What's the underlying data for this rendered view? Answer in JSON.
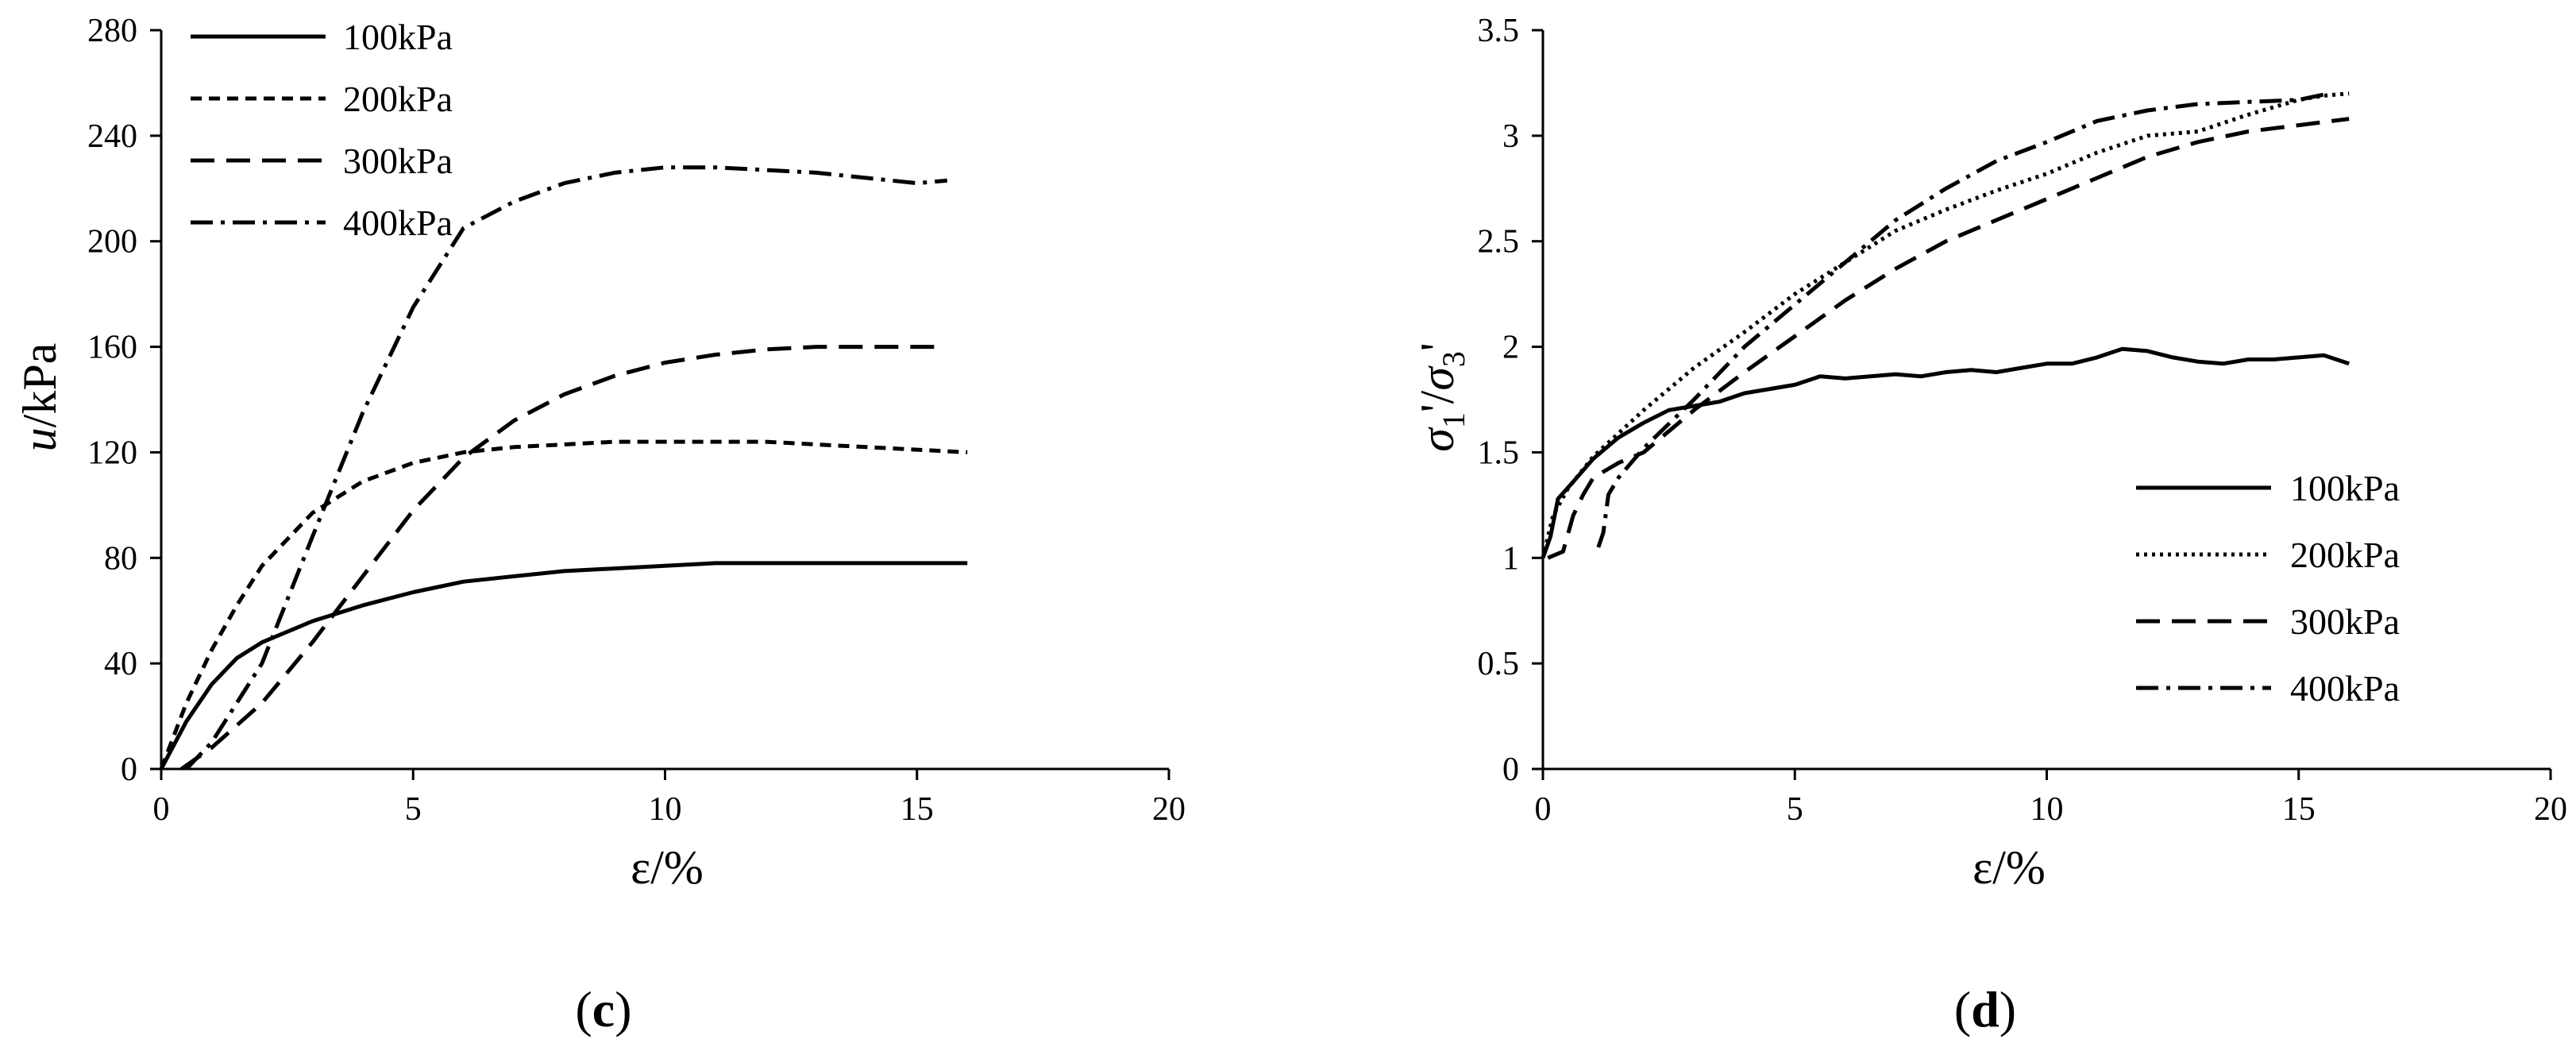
{
  "chart_data": [
    {
      "type": "line",
      "panel_label": {
        "open": "(",
        "letter": "c",
        "close": ")"
      },
      "title": "",
      "xlabel": "ε/%",
      "ylabel": {
        "italic": "u",
        "rest": "/kPa"
      },
      "xlim": [
        0,
        20
      ],
      "ylim": [
        0,
        280
      ],
      "xticks": [
        "0",
        "5",
        "10",
        "15",
        "20"
      ],
      "yticks": [
        "0",
        "40",
        "80",
        "120",
        "160",
        "200",
        "240",
        "280"
      ],
      "grid": false,
      "legend": "top-left",
      "series": [
        {
          "name": "100kPa",
          "dash": "solid",
          "x": [
            0,
            0.5,
            1,
            1.5,
            2,
            3,
            4,
            5,
            6,
            7,
            8,
            9,
            10,
            11,
            12,
            13,
            14,
            15,
            16
          ],
          "y": [
            0,
            18,
            32,
            42,
            48,
            56,
            62,
            67,
            71,
            73,
            75,
            76,
            77,
            78,
            78,
            78,
            78,
            78,
            78
          ]
        },
        {
          "name": "200kPa",
          "dash": "short",
          "x": [
            0,
            0.5,
            1,
            1.5,
            2,
            3,
            4,
            5,
            6,
            7,
            8,
            9,
            10,
            11,
            12,
            13,
            14,
            15,
            16
          ],
          "y": [
            0,
            25,
            45,
            62,
            77,
            97,
            109,
            116,
            120,
            122,
            123,
            124,
            124,
            124,
            124,
            123,
            122,
            121,
            120
          ]
        },
        {
          "name": "300kPa",
          "dash": "long",
          "x": [
            0.4,
            1,
            2,
            3,
            4,
            5,
            6,
            7,
            8,
            9,
            10,
            11,
            12,
            13,
            14,
            15,
            15.5
          ],
          "y": [
            0,
            8,
            25,
            48,
            73,
            98,
            118,
            132,
            142,
            149,
            154,
            157,
            159,
            160,
            160,
            160,
            160
          ]
        },
        {
          "name": "400kPa",
          "dash": "dashdot",
          "x": [
            0.5,
            1,
            2,
            3,
            4,
            5,
            6,
            7,
            8,
            9,
            10,
            11,
            12,
            13,
            14,
            15,
            15.6
          ],
          "y": [
            0,
            10,
            40,
            88,
            135,
            175,
            205,
            215,
            222,
            226,
            228,
            228,
            227,
            226,
            224,
            222,
            223
          ]
        }
      ]
    },
    {
      "type": "line",
      "panel_label": {
        "open": "(",
        "letter": "d",
        "close": ")"
      },
      "title": "",
      "xlabel": "ε/%",
      "ylabel": {
        "sigma": "σ",
        "sub1": "1",
        "prime": "'",
        "slash": "/",
        "sub3": "3"
      },
      "xlim": [
        0,
        20
      ],
      "ylim": [
        0,
        3.5
      ],
      "xticks": [
        "0",
        "5",
        "10",
        "15",
        "20"
      ],
      "yticks": [
        "0",
        "0.5",
        "1",
        "1.5",
        "2",
        "2.5",
        "3",
        "3.5"
      ],
      "grid": false,
      "legend": "bottom-right",
      "series": [
        {
          "name": "100kPa",
          "dash": "solid",
          "x": [
            0,
            0.15,
            0.3,
            0.6,
            1,
            1.5,
            2,
            2.5,
            3,
            3.5,
            4,
            5,
            5.5,
            6,
            6.5,
            7,
            7.5,
            8,
            8.5,
            9,
            9.5,
            10,
            10.5,
            11,
            11.5,
            12,
            12.5,
            13,
            13.5,
            14,
            14.5,
            15,
            15.5,
            16
          ],
          "y": [
            1.0,
            1.1,
            1.28,
            1.36,
            1.47,
            1.57,
            1.64,
            1.7,
            1.72,
            1.74,
            1.78,
            1.82,
            1.86,
            1.85,
            1.86,
            1.87,
            1.86,
            1.88,
            1.89,
            1.88,
            1.9,
            1.92,
            1.92,
            1.95,
            1.99,
            1.98,
            1.95,
            1.93,
            1.92,
            1.94,
            1.94,
            1.95,
            1.96,
            1.92
          ]
        },
        {
          "name": "200kPa",
          "dash": "dotted",
          "x": [
            0,
            0.2,
            0.5,
            1,
            2,
            3,
            4,
            5,
            6,
            7,
            8,
            9,
            10,
            11,
            12,
            13,
            14,
            15,
            15.5,
            16
          ],
          "y": [
            1.0,
            1.2,
            1.33,
            1.48,
            1.7,
            1.9,
            2.07,
            2.25,
            2.4,
            2.55,
            2.65,
            2.74,
            2.82,
            2.92,
            3.0,
            3.02,
            3.1,
            3.17,
            3.19,
            3.2
          ]
        },
        {
          "name": "300kPa",
          "dash": "long",
          "x": [
            0.1,
            0.4,
            0.6,
            0.8,
            1,
            1.5,
            2,
            3,
            4,
            5,
            6,
            7,
            8,
            9,
            10,
            11,
            12,
            13,
            14,
            15,
            16
          ],
          "y": [
            1.0,
            1.03,
            1.2,
            1.3,
            1.38,
            1.45,
            1.5,
            1.7,
            1.88,
            2.05,
            2.22,
            2.37,
            2.5,
            2.6,
            2.7,
            2.8,
            2.9,
            2.97,
            3.02,
            3.05,
            3.08
          ]
        },
        {
          "name": "400kPa",
          "dash": "dashdot",
          "x": [
            1.1,
            1.2,
            1.3,
            1.5,
            2,
            3,
            4,
            5,
            6,
            7,
            8,
            9,
            10,
            11,
            12,
            13,
            14,
            15,
            15.6
          ],
          "y": [
            1.05,
            1.12,
            1.3,
            1.38,
            1.52,
            1.75,
            2.0,
            2.2,
            2.4,
            2.6,
            2.75,
            2.88,
            2.97,
            3.07,
            3.12,
            3.15,
            3.16,
            3.17,
            3.2
          ]
        }
      ]
    }
  ]
}
